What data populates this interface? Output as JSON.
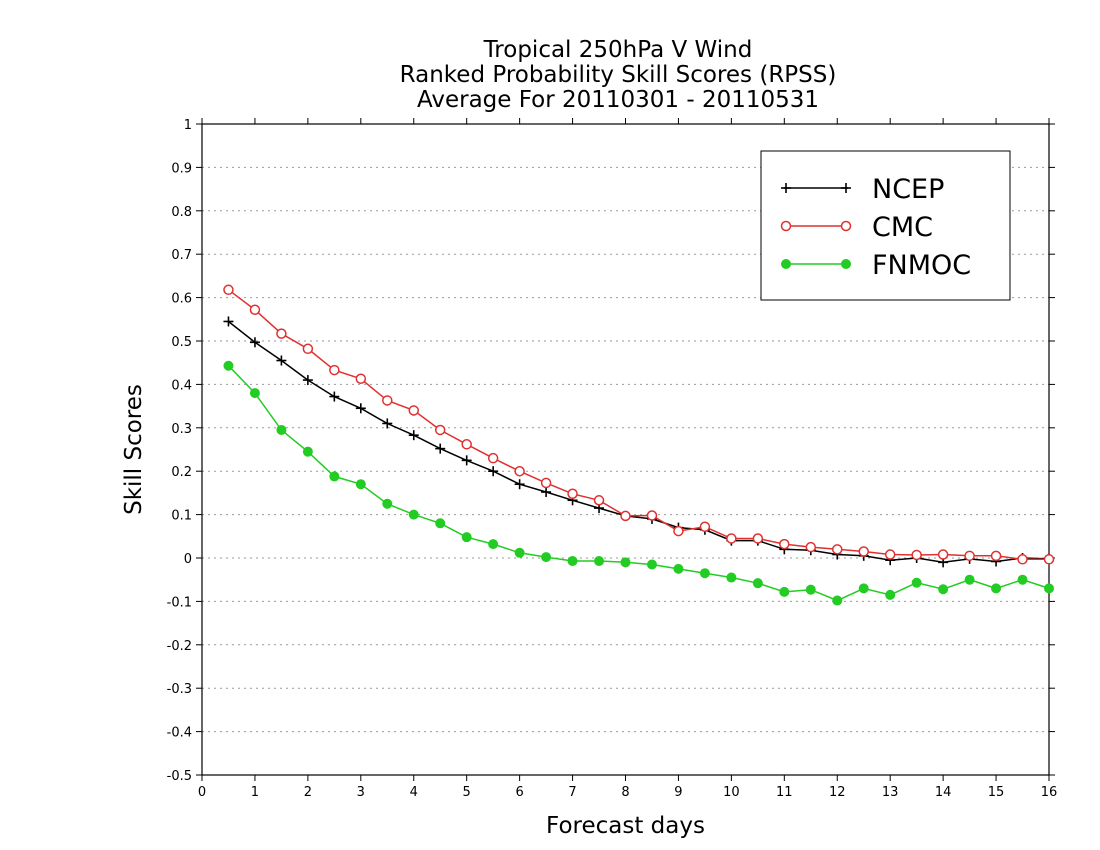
{
  "chart_data": {
    "type": "line",
    "title_lines": [
      "Tropical 250hPa V Wind",
      "Ranked Probability Skill Scores (RPSS)",
      "Average For 20110301 - 20110531"
    ],
    "xlabel": "Forecast days",
    "ylabel": "Skill Scores",
    "xlim": [
      0,
      16
    ],
    "ylim": [
      -0.5,
      1
    ],
    "xticks": [
      0,
      1,
      2,
      3,
      4,
      5,
      6,
      7,
      8,
      9,
      10,
      11,
      12,
      13,
      14,
      15,
      16
    ],
    "xtick_labels": [
      "0",
      "1",
      "2",
      "3",
      "4",
      "5",
      "6",
      "7",
      "8",
      "9",
      "10",
      "11",
      "12",
      "13",
      "14",
      "15",
      "16"
    ],
    "yticks": [
      -0.5,
      -0.4,
      -0.3,
      -0.2,
      -0.1,
      0,
      0.1,
      0.2,
      0.3,
      0.4,
      0.5,
      0.6,
      0.7,
      0.8,
      0.9,
      1
    ],
    "ytick_labels": [
      "-0.5",
      "-0.4",
      "-0.3",
      "-0.2",
      "-0.1",
      "0",
      "0.1",
      "0.2",
      "0.3",
      "0.4",
      "0.5",
      "0.6",
      "0.7",
      "0.8",
      "0.9",
      "1"
    ],
    "grid": "horizontal dotted",
    "legend_position": "top-right",
    "x": [
      0.5,
      1,
      1.5,
      2,
      2.5,
      3,
      3.5,
      4,
      4.5,
      5,
      5.5,
      6,
      6.5,
      7,
      7.5,
      8,
      8.5,
      9,
      9.5,
      10,
      10.5,
      11,
      11.5,
      12,
      12.5,
      13,
      13.5,
      14,
      14.5,
      15,
      15.5,
      16
    ],
    "series": [
      {
        "name": "NCEP",
        "color": "#000000",
        "marker": "plus",
        "values": [
          0.545,
          0.497,
          0.455,
          0.41,
          0.372,
          0.345,
          0.31,
          0.283,
          0.252,
          0.225,
          0.2,
          0.17,
          0.152,
          0.133,
          0.115,
          0.097,
          0.09,
          0.07,
          0.065,
          0.04,
          0.04,
          0.02,
          0.018,
          0.008,
          0.005,
          -0.005,
          0.0,
          -0.01,
          -0.002,
          -0.008,
          0.0,
          -0.002
        ]
      },
      {
        "name": "CMC",
        "color": "#e03030",
        "marker": "open-circle",
        "values": [
          0.618,
          0.572,
          0.517,
          0.482,
          0.433,
          0.413,
          0.363,
          0.34,
          0.295,
          0.262,
          0.23,
          0.2,
          0.173,
          0.148,
          0.133,
          0.097,
          0.098,
          0.062,
          0.072,
          0.045,
          0.045,
          0.032,
          0.025,
          0.02,
          0.015,
          0.008,
          0.007,
          0.008,
          0.005,
          0.005,
          -0.003,
          -0.003
        ]
      },
      {
        "name": "FNMOC",
        "color": "#22cc22",
        "marker": "filled-circle",
        "values": [
          0.443,
          0.38,
          0.295,
          0.245,
          0.188,
          0.17,
          0.125,
          0.1,
          0.08,
          0.048,
          0.032,
          0.012,
          0.002,
          -0.007,
          -0.007,
          -0.01,
          -0.015,
          -0.025,
          -0.035,
          -0.045,
          -0.058,
          -0.078,
          -0.073,
          -0.098,
          -0.07,
          -0.085,
          -0.057,
          -0.072,
          -0.05,
          -0.07,
          -0.05,
          -0.07
        ]
      }
    ]
  }
}
